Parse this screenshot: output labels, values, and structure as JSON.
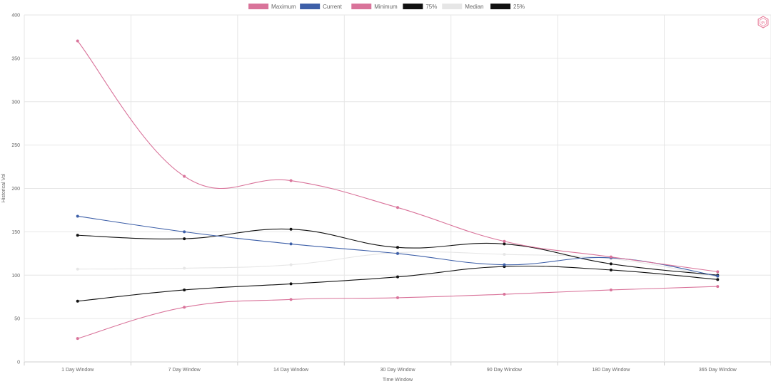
{
  "chart_data": {
    "type": "line",
    "title": "",
    "xlabel": "Time Window",
    "ylabel": "Historical Vol",
    "ylim": [
      0,
      400
    ],
    "yticks": [
      0,
      50,
      100,
      150,
      200,
      250,
      300,
      350,
      400
    ],
    "grid": true,
    "legend_position": "top-center",
    "categories": [
      "1 Day Window",
      "7 Day Window",
      "14 Day Window",
      "30 Day Window",
      "90 Day Window",
      "180 Day Window",
      "365 Day Window"
    ],
    "series": [
      {
        "name": "Maximum",
        "color": "#d9739a",
        "values": [
          370,
          214,
          209,
          178,
          139,
          121,
          104
        ]
      },
      {
        "name": "Current",
        "color": "#3d5fa8",
        "values": [
          168,
          150,
          136,
          125,
          112,
          120,
          99
        ]
      },
      {
        "name": "Minimum",
        "color": "#d9739a",
        "values": [
          27,
          63,
          72,
          74,
          78,
          83,
          87
        ]
      },
      {
        "name": "75%",
        "color": "#111111",
        "values": [
          146,
          142,
          153,
          132,
          136,
          113,
          100
        ]
      },
      {
        "name": "Median",
        "color": "#e6e6e6",
        "values": [
          107,
          108,
          112,
          126,
          124,
          119,
          98
        ]
      },
      {
        "name": "25%",
        "color": "#111111",
        "values": [
          70,
          83,
          90,
          98,
          110,
          106,
          95
        ]
      }
    ]
  },
  "badge": {
    "icon": "hexagon-logo-icon",
    "text": "qv"
  }
}
